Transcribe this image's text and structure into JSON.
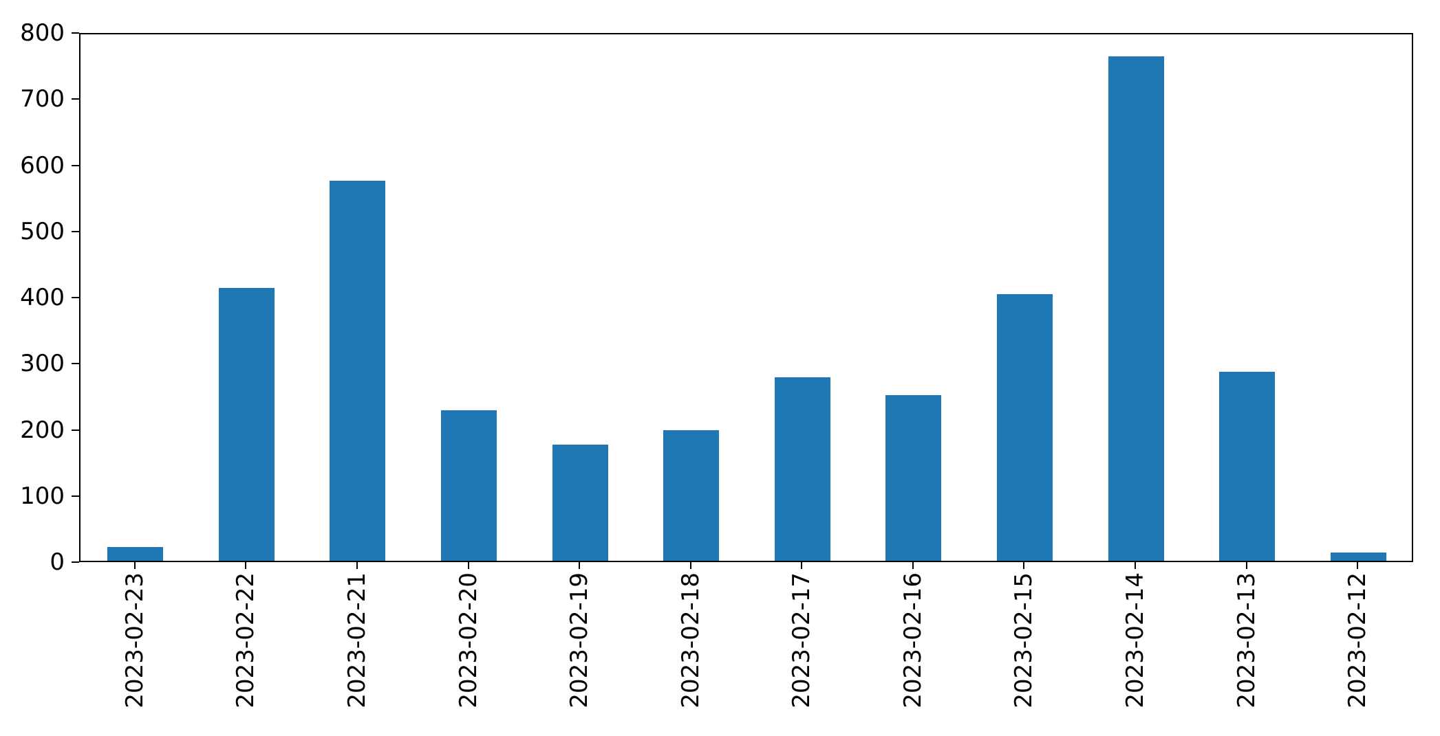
{
  "figure": {
    "background": "#ffffff",
    "text_color": "#000000",
    "spine_color": "#000000"
  },
  "chart_data": {
    "type": "bar",
    "title": "",
    "xlabel": "",
    "ylabel": "",
    "categories": [
      "2023-02-23",
      "2023-02-22",
      "2023-02-21",
      "2023-02-20",
      "2023-02-19",
      "2023-02-18",
      "2023-02-17",
      "2023-02-16",
      "2023-02-15",
      "2023-02-14",
      "2023-02-13",
      "2023-02-12"
    ],
    "values": [
      21,
      413,
      575,
      228,
      176,
      197,
      277,
      250,
      403,
      763,
      286,
      12
    ],
    "bar_color": "#1f77b4",
    "ylim": [
      0,
      800
    ],
    "yticks": [
      0,
      100,
      200,
      300,
      400,
      500,
      600,
      700,
      800
    ],
    "x_tick_rotation_deg": 90,
    "grid": false,
    "legend_position": "none"
  }
}
